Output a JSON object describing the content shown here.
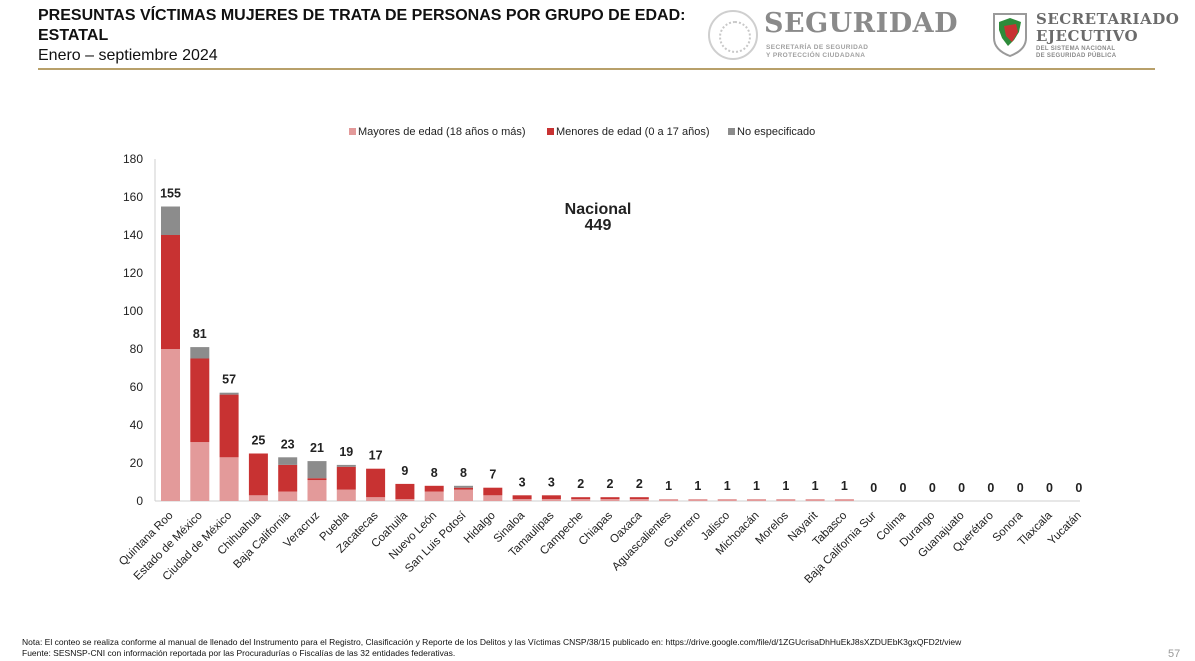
{
  "header": {
    "title": "PRESUNTAS VÍCTIMAS MUJERES DE TRATA DE PERSONAS POR GRUPO DE EDAD: ESTATAL",
    "subtitle": "Enero – septiembre 2024"
  },
  "logos": {
    "seguridad": {
      "name": "SEGURIDAD",
      "sub_line1": "SECRETARÍA DE SEGURIDAD",
      "sub_line2": "Y PROTECCIÓN CIUDADANA"
    },
    "secretariado": {
      "name_line1": "SECRETARIADO",
      "name_line2": "EJECUTIVO",
      "sub_line1": "DEL SISTEMA NACIONAL",
      "sub_line2": "DE SEGURIDAD PÚBLICA"
    }
  },
  "chart_data": {
    "type": "bar",
    "stacked": true,
    "categories": [
      "Quintana Roo",
      "Estado de México",
      "Ciudad de México",
      "Chihuahua",
      "Baja California",
      "Veracruz",
      "Puebla",
      "Zacatecas",
      "Coahuila",
      "Nuevo León",
      "San Luis Potosí",
      "Hidalgo",
      "Sinaloa",
      "Tamaulipas",
      "Campeche",
      "Chiapas",
      "Oaxaca",
      "Aguascalientes",
      "Guerrero",
      "Jalisco",
      "Michoacán",
      "Morelos",
      "Nayarit",
      "Tabasco",
      "Baja California Sur",
      "Colima",
      "Durango",
      "Guanajuato",
      "Querétaro",
      "Sonora",
      "Tlaxcala",
      "Yucatán"
    ],
    "series": [
      {
        "name": "Mayores de edad (18 años o más)",
        "color": "#e39a9a",
        "values": [
          80,
          31,
          23,
          3,
          5,
          11,
          6,
          2,
          1,
          5,
          6,
          3,
          1,
          1,
          1,
          1,
          1,
          1,
          1,
          1,
          1,
          1,
          1,
          1,
          0,
          0,
          0,
          0,
          0,
          0,
          0,
          0
        ]
      },
      {
        "name": "Menores de edad (0 a 17 años)",
        "color": "#c83232",
        "values": [
          60,
          44,
          33,
          22,
          14,
          1,
          12,
          15,
          8,
          3,
          1,
          4,
          2,
          2,
          1,
          1,
          1,
          0,
          0,
          0,
          0,
          0,
          0,
          0,
          0,
          0,
          0,
          0,
          0,
          0,
          0,
          0
        ]
      },
      {
        "name": "No especificado",
        "color": "#8c8c8c",
        "values": [
          15,
          6,
          1,
          0,
          4,
          9,
          1,
          0,
          0,
          0,
          1,
          0,
          0,
          0,
          0,
          0,
          0,
          0,
          0,
          0,
          0,
          0,
          0,
          0,
          0,
          0,
          0,
          0,
          0,
          0,
          0,
          0
        ]
      }
    ],
    "totals": [
      155,
      81,
      57,
      25,
      23,
      21,
      19,
      17,
      9,
      8,
      8,
      7,
      3,
      3,
      2,
      2,
      2,
      1,
      1,
      1,
      1,
      1,
      1,
      1,
      0,
      0,
      0,
      0,
      0,
      0,
      0,
      0
    ],
    "ylim": [
      0,
      180
    ],
    "yticks": [
      0,
      20,
      40,
      60,
      80,
      100,
      120,
      140,
      160,
      180
    ],
    "grid": false,
    "legend_position": "top",
    "annotation": {
      "line1": "Nacional",
      "line2": "449"
    }
  },
  "footer": {
    "note": "Nota: El conteo se realiza conforme al manual de llenado del Instrumento para el Registro, Clasificación y Reporte de los Delitos y las Víctimas CNSP/38/15 publicado en: https://drive.google.com/file/d/1ZGUcrisaDhHuEkJ8sXZDUEbK3gxQFD2t/view",
    "source": "Fuente: SESNSP-CNI con información reportada por las Procuradurías o Fiscalías de las 32 entidades federativas.",
    "page_number": "57"
  }
}
